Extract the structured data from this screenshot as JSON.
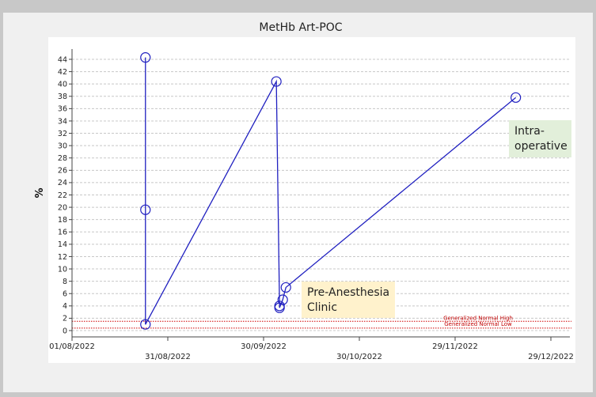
{
  "chart_data": {
    "type": "line",
    "title": "MetHb Art-POC",
    "ylabel": "%",
    "xlabel": "",
    "ylim": [
      0,
      45
    ],
    "yticks": [
      0,
      2,
      4,
      6,
      8,
      10,
      12,
      14,
      16,
      18,
      20,
      22,
      24,
      26,
      28,
      30,
      32,
      34,
      36,
      38,
      40,
      42,
      44
    ],
    "xlim": [
      "2022-08-01",
      "2022-12-29"
    ],
    "xticks_top": [
      {
        "date": "2022-08-01",
        "label": "01/08/2022"
      },
      {
        "date": "2022-09-30",
        "label": "30/09/2022"
      },
      {
        "date": "2022-11-29",
        "label": "29/11/2022"
      }
    ],
    "xticks_bottom": [
      {
        "date": "2022-08-31",
        "label": "31/08/2022"
      },
      {
        "date": "2022-10-30",
        "label": "30/10/2022"
      },
      {
        "date": "2022-12-29",
        "label": "29/12/2022"
      }
    ],
    "grid": true,
    "series": [
      {
        "color": "#2020c0",
        "points": [
          {
            "x": "2022-08-24",
            "y": 44.3
          },
          {
            "x": "2022-08-24",
            "y": 19.6
          },
          {
            "x": "2022-08-24",
            "y": 1.0
          },
          {
            "x": "2022-10-04",
            "y": 40.4
          },
          {
            "x": "2022-10-05",
            "y": 4.0
          },
          {
            "x": "2022-10-05",
            "y": 3.7
          },
          {
            "x": "2022-10-06",
            "y": 5.0
          },
          {
            "x": "2022-10-07",
            "y": 7.0
          },
          {
            "x": "2022-12-18",
            "y": 37.8
          }
        ]
      }
    ],
    "reference_lines": [
      {
        "label": "Generalized Normal High",
        "y": 1.5,
        "color": "#d00000"
      },
      {
        "label": "Generalized Normal Low",
        "y": 0.4,
        "color": "#d00000"
      }
    ],
    "annotations": [
      {
        "id": "intra",
        "lines": [
          "Intra-",
          "operative"
        ],
        "bg": "#e2efda"
      },
      {
        "id": "pre",
        "lines": [
          "Pre-Anesthesia",
          "Clinic"
        ],
        "bg": "#fff2cc"
      }
    ]
  }
}
